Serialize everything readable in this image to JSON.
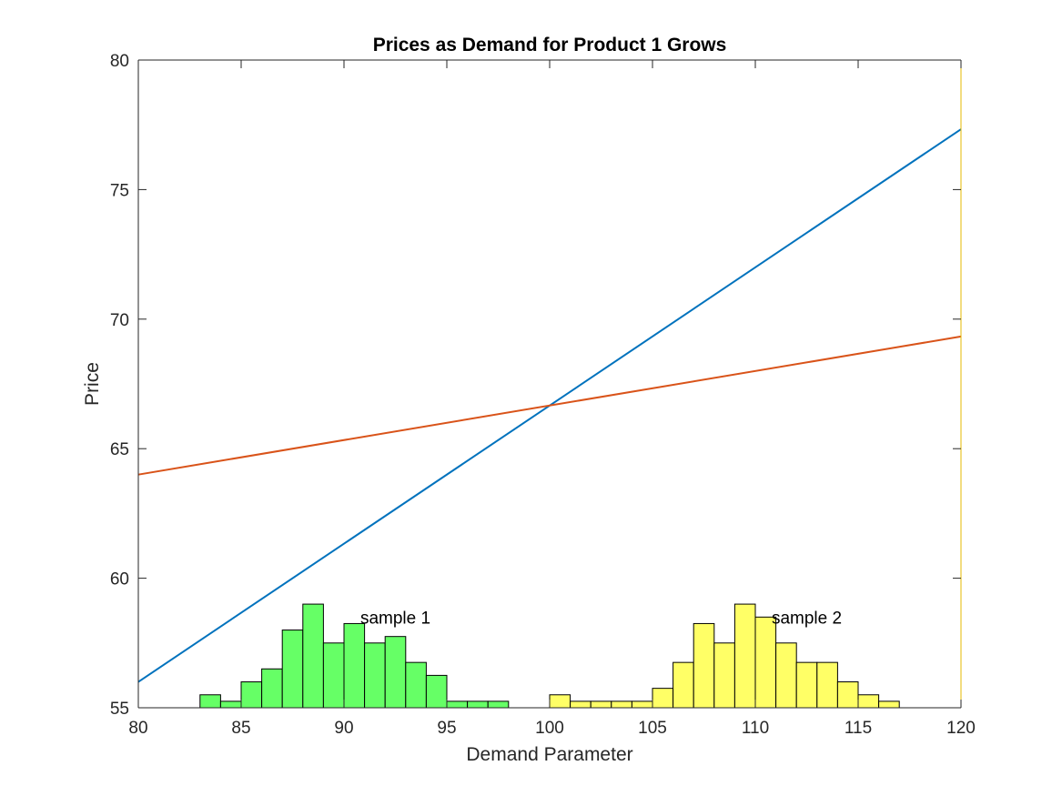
{
  "chart_data": {
    "type": "line",
    "title": "Prices as Demand for Product 1 Grows",
    "xlabel": "Demand Parameter",
    "ylabel": "Price",
    "xlim": [
      80,
      120
    ],
    "ylim": [
      55,
      80
    ],
    "x_ticks": [
      80,
      85,
      90,
      95,
      100,
      105,
      110,
      115,
      120
    ],
    "y_ticks": [
      55,
      60,
      65,
      70,
      75,
      80
    ],
    "grid": false,
    "series": [
      {
        "type": "line",
        "x": [
          80,
          120
        ],
        "y": [
          56.0,
          77.33
        ],
        "color": "#0072bd"
      },
      {
        "type": "line",
        "x": [
          80,
          120
        ],
        "y": [
          64.0,
          69.33
        ],
        "color": "#d95319"
      }
    ],
    "histograms": [
      {
        "label": "sample 1",
        "color": "#66ff66",
        "bin_width": 1,
        "bin_starts": [
          83,
          84,
          85,
          86,
          87,
          88,
          89,
          90,
          91,
          92,
          93,
          94,
          95,
          96,
          97
        ],
        "tops": [
          55.5,
          55.25,
          56.0,
          56.5,
          58.0,
          59.0,
          57.5,
          58.25,
          57.5,
          57.75,
          56.75,
          56.25,
          55.25,
          55.25,
          55.25
        ]
      },
      {
        "label": "sample 2",
        "color": "#ffff66",
        "bin_width": 1,
        "bin_starts": [
          100,
          101,
          102,
          103,
          104,
          105,
          106,
          107,
          108,
          109,
          110,
          111,
          112,
          113,
          114,
          115,
          116
        ],
        "tops": [
          55.5,
          55.25,
          55.25,
          55.25,
          55.25,
          55.75,
          56.75,
          58.25,
          57.5,
          59.0,
          58.5,
          57.5,
          56.75,
          56.75,
          56.0,
          55.5,
          55.25
        ]
      }
    ],
    "annotations": [
      {
        "text": "sample 1",
        "x": 92.5,
        "y": 58.5
      },
      {
        "text": "sample 2",
        "x": 112.5,
        "y": 58.5
      }
    ]
  }
}
